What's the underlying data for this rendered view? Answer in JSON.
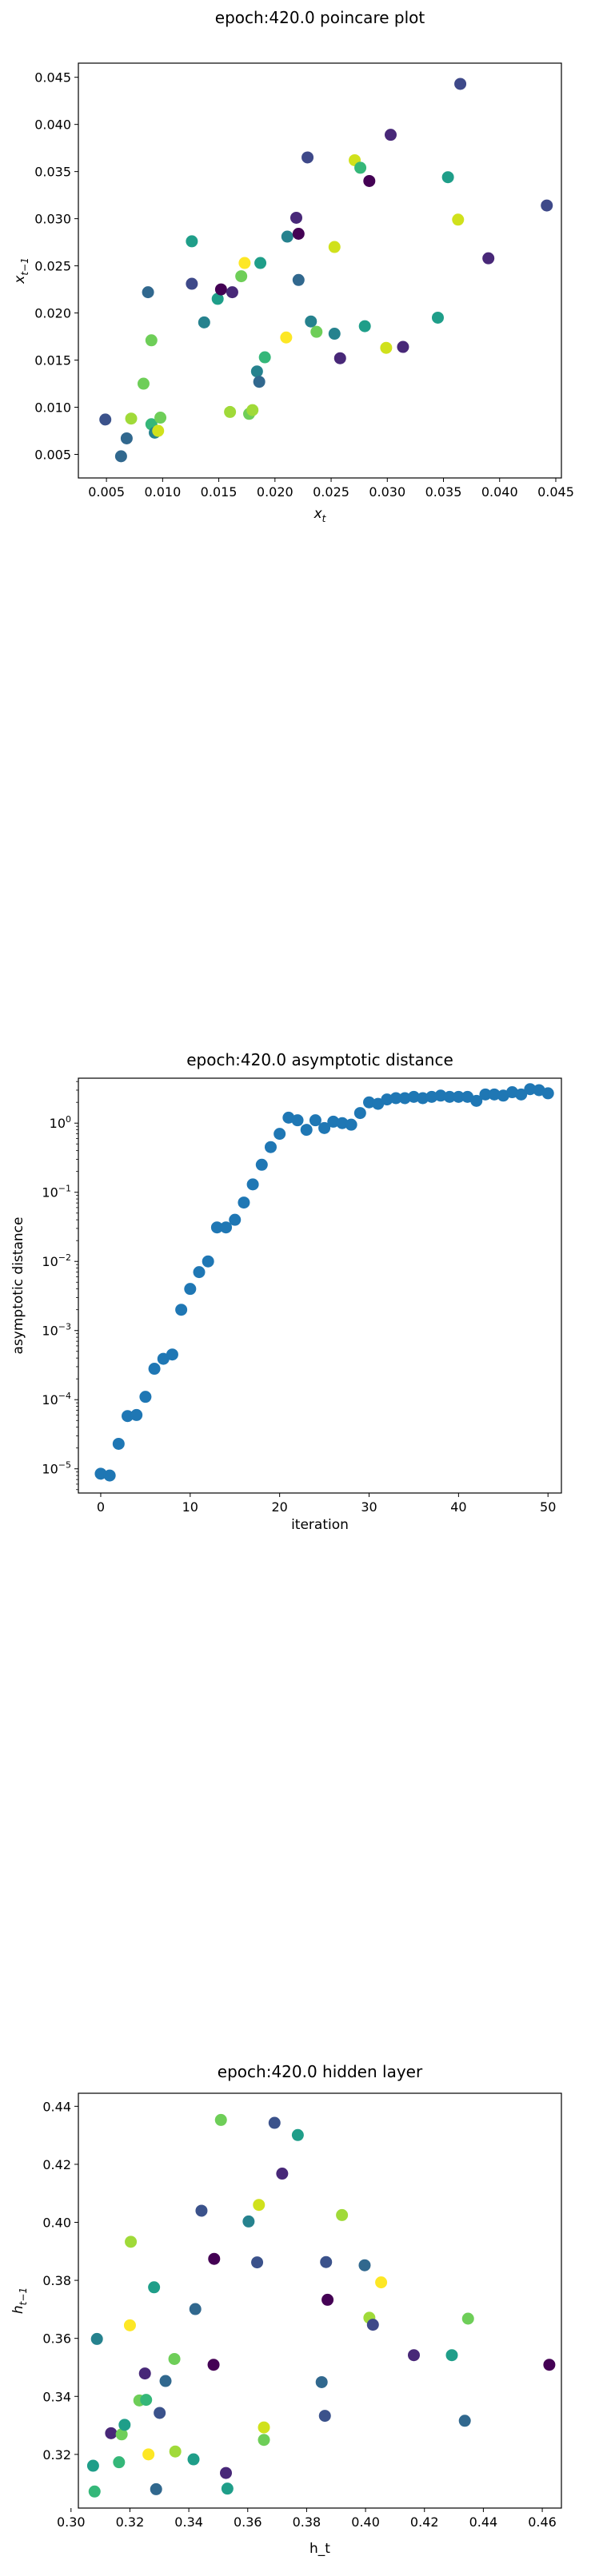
{
  "chart_data": [
    {
      "type": "scatter",
      "title": "epoch:420.0 poincare plot",
      "xlabel": "x_t",
      "ylabel": "x_{t-1}",
      "xlim": [
        0.0025,
        0.0455
      ],
      "ylim": [
        0.0025,
        0.0465
      ],
      "xticks": [
        0.005,
        0.01,
        0.015,
        0.02,
        0.025,
        0.03,
        0.035,
        0.04,
        0.045
      ],
      "yticks": [
        0.005,
        0.01,
        0.015,
        0.02,
        0.025,
        0.03,
        0.035,
        0.04,
        0.045
      ],
      "xtick_labels": [
        "0.005",
        "0.010",
        "0.015",
        "0.020",
        "0.025",
        "0.030",
        "0.035",
        "0.040",
        "0.045"
      ],
      "ytick_labels": [
        "0.005",
        "0.010",
        "0.015",
        "0.020",
        "0.025",
        "0.030",
        "0.035",
        "0.040",
        "0.045"
      ],
      "points": [
        {
          "x": 0.0049,
          "y": 0.0087,
          "c": "#3b528b"
        },
        {
          "x": 0.0063,
          "y": 0.0048,
          "c": "#31688e"
        },
        {
          "x": 0.0068,
          "y": 0.0067,
          "c": "#31688e"
        },
        {
          "x": 0.0072,
          "y": 0.0088,
          "c": "#a0da39"
        },
        {
          "x": 0.0083,
          "y": 0.0125,
          "c": "#6ece58"
        },
        {
          "x": 0.0087,
          "y": 0.0222,
          "c": "#31688e"
        },
        {
          "x": 0.009,
          "y": 0.0171,
          "c": "#6ece58"
        },
        {
          "x": 0.009,
          "y": 0.0082,
          "c": "#35b779"
        },
        {
          "x": 0.0093,
          "y": 0.0073,
          "c": "#26828e"
        },
        {
          "x": 0.0096,
          "y": 0.0075,
          "c": "#d0e11c"
        },
        {
          "x": 0.0098,
          "y": 0.0089,
          "c": "#6ece58"
        },
        {
          "x": 0.0126,
          "y": 0.0231,
          "c": "#3e4989"
        },
        {
          "x": 0.0126,
          "y": 0.0276,
          "c": "#1f9e89"
        },
        {
          "x": 0.0137,
          "y": 0.019,
          "c": "#26828e"
        },
        {
          "x": 0.0149,
          "y": 0.0215,
          "c": "#1f9e89"
        },
        {
          "x": 0.0152,
          "y": 0.0225,
          "c": "#440154"
        },
        {
          "x": 0.016,
          "y": 0.0095,
          "c": "#a0da39"
        },
        {
          "x": 0.0162,
          "y": 0.0222,
          "c": "#482878"
        },
        {
          "x": 0.017,
          "y": 0.0239,
          "c": "#6ece58"
        },
        {
          "x": 0.0173,
          "y": 0.0253,
          "c": "#fde725"
        },
        {
          "x": 0.0177,
          "y": 0.0093,
          "c": "#6ece58"
        },
        {
          "x": 0.018,
          "y": 0.0097,
          "c": "#a0da39"
        },
        {
          "x": 0.0184,
          "y": 0.0138,
          "c": "#26828e"
        },
        {
          "x": 0.0187,
          "y": 0.0253,
          "c": "#1f9e89"
        },
        {
          "x": 0.0186,
          "y": 0.0127,
          "c": "#31688e"
        },
        {
          "x": 0.0191,
          "y": 0.0153,
          "c": "#35b779"
        },
        {
          "x": 0.021,
          "y": 0.0174,
          "c": "#fde725"
        },
        {
          "x": 0.0211,
          "y": 0.0281,
          "c": "#26828e"
        },
        {
          "x": 0.0219,
          "y": 0.0301,
          "c": "#482878"
        },
        {
          "x": 0.0221,
          "y": 0.0235,
          "c": "#31688e"
        },
        {
          "x": 0.0221,
          "y": 0.0284,
          "c": "#440154"
        },
        {
          "x": 0.0229,
          "y": 0.0365,
          "c": "#3e4989"
        },
        {
          "x": 0.0232,
          "y": 0.0191,
          "c": "#26828e"
        },
        {
          "x": 0.0237,
          "y": 0.018,
          "c": "#6ece58"
        },
        {
          "x": 0.0253,
          "y": 0.027,
          "c": "#d0e11c"
        },
        {
          "x": 0.0253,
          "y": 0.0178,
          "c": "#26828e"
        },
        {
          "x": 0.0258,
          "y": 0.0152,
          "c": "#482878"
        },
        {
          "x": 0.0271,
          "y": 0.0362,
          "c": "#d0e11c"
        },
        {
          "x": 0.0276,
          "y": 0.0354,
          "c": "#35b779"
        },
        {
          "x": 0.028,
          "y": 0.0186,
          "c": "#1f9e89"
        },
        {
          "x": 0.0284,
          "y": 0.034,
          "c": "#440154"
        },
        {
          "x": 0.0299,
          "y": 0.0163,
          "c": "#d0e11c"
        },
        {
          "x": 0.0303,
          "y": 0.0389,
          "c": "#482878"
        },
        {
          "x": 0.0314,
          "y": 0.0164,
          "c": "#482878"
        },
        {
          "x": 0.0345,
          "y": 0.0195,
          "c": "#1f9e89"
        },
        {
          "x": 0.0354,
          "y": 0.0344,
          "c": "#1f9e89"
        },
        {
          "x": 0.0363,
          "y": 0.0299,
          "c": "#d0e11c"
        },
        {
          "x": 0.0365,
          "y": 0.0443,
          "c": "#3e4989"
        },
        {
          "x": 0.039,
          "y": 0.0258,
          "c": "#482878"
        },
        {
          "x": 0.0442,
          "y": 0.0314,
          "c": "#3e4989"
        }
      ]
    },
    {
      "type": "scatter",
      "scale": "log-y",
      "title": "epoch:420.0 asymptotic distance",
      "xlabel": "iteration",
      "ylabel": "asymptotic distance",
      "xlim": [
        -2.5,
        51.5
      ],
      "ylim_log10": [
        -5.35,
        0.65
      ],
      "xticks": [
        0,
        10,
        20,
        30,
        40,
        50
      ],
      "yticks_log10": [
        -5,
        -4,
        -3,
        -2,
        -1,
        0
      ],
      "ytick_labels_base": "10",
      "ytick_labels_exp": [
        "−5",
        "−4",
        "−3",
        "−2",
        "−1",
        "0"
      ],
      "color": "#1f77b4",
      "points": [
        {
          "x": 0,
          "y": 8.5e-06
        },
        {
          "x": 1,
          "y": 8e-06
        },
        {
          "x": 2,
          "y": 2.3e-05
        },
        {
          "x": 3,
          "y": 5.8e-05
        },
        {
          "x": 4,
          "y": 6e-05
        },
        {
          "x": 5,
          "y": 0.00011
        },
        {
          "x": 6,
          "y": 0.00028
        },
        {
          "x": 7,
          "y": 0.00039
        },
        {
          "x": 8,
          "y": 0.00045
        },
        {
          "x": 9,
          "y": 0.002
        },
        {
          "x": 10,
          "y": 0.004
        },
        {
          "x": 11,
          "y": 0.007
        },
        {
          "x": 12,
          "y": 0.01
        },
        {
          "x": 13,
          "y": 0.031
        },
        {
          "x": 14,
          "y": 0.031
        },
        {
          "x": 15,
          "y": 0.04
        },
        {
          "x": 16,
          "y": 0.071
        },
        {
          "x": 17,
          "y": 0.13
        },
        {
          "x": 18,
          "y": 0.25
        },
        {
          "x": 19,
          "y": 0.45
        },
        {
          "x": 20,
          "y": 0.7
        },
        {
          "x": 21,
          "y": 1.2
        },
        {
          "x": 22,
          "y": 1.1
        },
        {
          "x": 23,
          "y": 0.8
        },
        {
          "x": 24,
          "y": 1.1
        },
        {
          "x": 25,
          "y": 0.85
        },
        {
          "x": 26,
          "y": 1.05
        },
        {
          "x": 27,
          "y": 1.0
        },
        {
          "x": 28,
          "y": 0.95
        },
        {
          "x": 29,
          "y": 1.4
        },
        {
          "x": 30,
          "y": 2.0
        },
        {
          "x": 31,
          "y": 1.9
        },
        {
          "x": 32,
          "y": 2.2
        },
        {
          "x": 33,
          "y": 2.3
        },
        {
          "x": 34,
          "y": 2.3
        },
        {
          "x": 35,
          "y": 2.4
        },
        {
          "x": 36,
          "y": 2.3
        },
        {
          "x": 37,
          "y": 2.4
        },
        {
          "x": 38,
          "y": 2.5
        },
        {
          "x": 39,
          "y": 2.4
        },
        {
          "x": 40,
          "y": 2.4
        },
        {
          "x": 41,
          "y": 2.4
        },
        {
          "x": 42,
          "y": 2.1
        },
        {
          "x": 43,
          "y": 2.6
        },
        {
          "x": 44,
          "y": 2.6
        },
        {
          "x": 45,
          "y": 2.5
        },
        {
          "x": 46,
          "y": 2.8
        },
        {
          "x": 47,
          "y": 2.6
        },
        {
          "x": 48,
          "y": 3.1
        },
        {
          "x": 49,
          "y": 3.0
        },
        {
          "x": 50,
          "y": 2.7
        }
      ]
    },
    {
      "type": "scatter",
      "title": "epoch:420.0 hidden layer",
      "xlabel": "h_t",
      "ylabel": "h_{t-1}",
      "xlim": [
        0.3025,
        0.4665
      ],
      "ylim": [
        0.3015,
        0.4445
      ],
      "xticks": [
        0.3,
        0.32,
        0.34,
        0.36,
        0.38,
        0.4,
        0.42,
        0.44,
        0.46
      ],
      "yticks": [
        0.32,
        0.34,
        0.36,
        0.38,
        0.4,
        0.42,
        0.44
      ],
      "xtick_labels": [
        "0.30",
        "0.32",
        "0.34",
        "0.36",
        "0.38",
        "0.40",
        "0.42",
        "0.44",
        "0.46"
      ],
      "ytick_labels": [
        "0.32",
        "0.34",
        "0.36",
        "0.38",
        "0.40",
        "0.42",
        "0.44"
      ],
      "points": [
        {
          "x": 0.3075,
          "y": 0.3161,
          "c": "#1f9e89"
        },
        {
          "x": 0.308,
          "y": 0.3072,
          "c": "#35b779"
        },
        {
          "x": 0.3088,
          "y": 0.3598,
          "c": "#26828e"
        },
        {
          "x": 0.3136,
          "y": 0.3273,
          "c": "#482878"
        },
        {
          "x": 0.3163,
          "y": 0.3173,
          "c": "#35b779"
        },
        {
          "x": 0.3172,
          "y": 0.3269,
          "c": "#6ece58"
        },
        {
          "x": 0.3182,
          "y": 0.3302,
          "c": "#1f9e89"
        },
        {
          "x": 0.3203,
          "y": 0.3933,
          "c": "#a0da39"
        },
        {
          "x": 0.32,
          "y": 0.3645,
          "c": "#fde725"
        },
        {
          "x": 0.3232,
          "y": 0.3386,
          "c": "#6ece58"
        },
        {
          "x": 0.3251,
          "y": 0.3479,
          "c": "#482878"
        },
        {
          "x": 0.3255,
          "y": 0.3388,
          "c": "#35b779"
        },
        {
          "x": 0.3263,
          "y": 0.32,
          "c": "#fde725"
        },
        {
          "x": 0.3282,
          "y": 0.3776,
          "c": "#1f9e89"
        },
        {
          "x": 0.3289,
          "y": 0.308,
          "c": "#31688e"
        },
        {
          "x": 0.3301,
          "y": 0.3343,
          "c": "#3b528b"
        },
        {
          "x": 0.3321,
          "y": 0.3453,
          "c": "#31688e"
        },
        {
          "x": 0.3354,
          "y": 0.321,
          "c": "#a0da39"
        },
        {
          "x": 0.3351,
          "y": 0.3529,
          "c": "#6ece58"
        },
        {
          "x": 0.3416,
          "y": 0.3183,
          "c": "#1f9e89"
        },
        {
          "x": 0.3422,
          "y": 0.3701,
          "c": "#31688e"
        },
        {
          "x": 0.3443,
          "y": 0.404,
          "c": "#3b528b"
        },
        {
          "x": 0.3486,
          "y": 0.3874,
          "c": "#440154"
        },
        {
          "x": 0.3484,
          "y": 0.3509,
          "c": "#440154"
        },
        {
          "x": 0.3509,
          "y": 0.4353,
          "c": "#6ece58"
        },
        {
          "x": 0.3526,
          "y": 0.3136,
          "c": "#482878"
        },
        {
          "x": 0.3531,
          "y": 0.3082,
          "c": "#1f9e89"
        },
        {
          "x": 0.3603,
          "y": 0.4003,
          "c": "#26828e"
        },
        {
          "x": 0.3638,
          "y": 0.406,
          "c": "#d0e11c"
        },
        {
          "x": 0.3632,
          "y": 0.3862,
          "c": "#3b528b"
        },
        {
          "x": 0.3655,
          "y": 0.3293,
          "c": "#d0e11c"
        },
        {
          "x": 0.3655,
          "y": 0.325,
          "c": "#6ece58"
        },
        {
          "x": 0.3691,
          "y": 0.4343,
          "c": "#3b528b"
        },
        {
          "x": 0.3717,
          "y": 0.4168,
          "c": "#482878"
        },
        {
          "x": 0.377,
          "y": 0.4301,
          "c": "#1f9e89"
        },
        {
          "x": 0.3851,
          "y": 0.3449,
          "c": "#31688e"
        },
        {
          "x": 0.3862,
          "y": 0.3333,
          "c": "#3b528b"
        },
        {
          "x": 0.3866,
          "y": 0.3863,
          "c": "#3b528b"
        },
        {
          "x": 0.3871,
          "y": 0.3733,
          "c": "#440154"
        },
        {
          "x": 0.392,
          "y": 0.4025,
          "c": "#a0da39"
        },
        {
          "x": 0.3997,
          "y": 0.3852,
          "c": "#31688e"
        },
        {
          "x": 0.4013,
          "y": 0.3671,
          "c": "#a0da39"
        },
        {
          "x": 0.4025,
          "y": 0.3647,
          "c": "#3e4989"
        },
        {
          "x": 0.4053,
          "y": 0.3793,
          "c": "#fde725"
        },
        {
          "x": 0.4164,
          "y": 0.3542,
          "c": "#482878"
        },
        {
          "x": 0.4293,
          "y": 0.3542,
          "c": "#1f9e89"
        },
        {
          "x": 0.4337,
          "y": 0.3316,
          "c": "#31688e"
        },
        {
          "x": 0.4348,
          "y": 0.3668,
          "c": "#6ece58"
        },
        {
          "x": 0.4624,
          "y": 0.3509,
          "c": "#440154"
        }
      ]
    }
  ]
}
